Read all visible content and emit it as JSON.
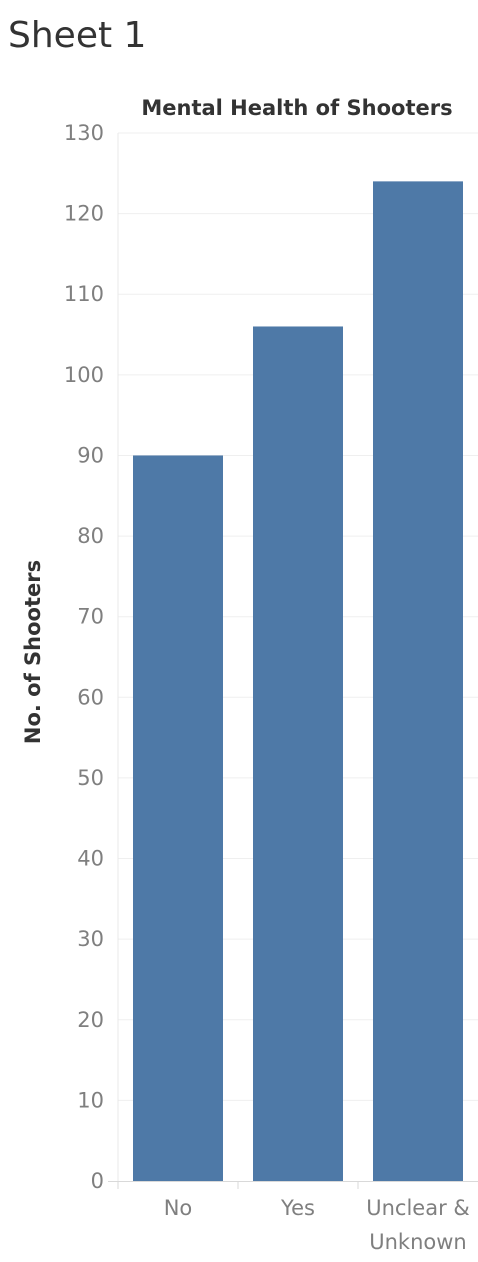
{
  "sheet": {
    "title": "Sheet 1"
  },
  "chart_data": {
    "type": "bar",
    "title": "Mental Health of Shooters",
    "xlabel": "",
    "ylabel": "No. of Shooters",
    "categories": [
      "No",
      "Yes",
      "Unclear & Unknown"
    ],
    "category_label_lines": [
      [
        "No"
      ],
      [
        "Yes"
      ],
      [
        "Unclear &",
        "Unknown"
      ]
    ],
    "values": [
      90,
      106,
      124
    ],
    "ylim": [
      0,
      130
    ],
    "yticks": [
      0,
      10,
      20,
      30,
      40,
      50,
      60,
      70,
      80,
      90,
      100,
      110,
      120,
      130
    ],
    "grid": true,
    "legend": "none",
    "bar_color": "#4e79a7",
    "grid_color": "#efefef",
    "text_color": "#333333",
    "tick_color": "#7f7f7f"
  }
}
